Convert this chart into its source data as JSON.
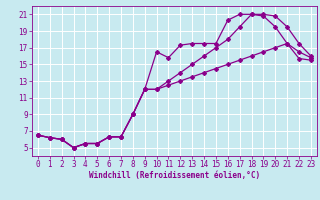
{
  "xlabel": "Windchill (Refroidissement éolien,°C)",
  "ylabel": "",
  "bg_color": "#c8eaf0",
  "line_color": "#8b008b",
  "marker": "D",
  "marker_size": 2,
  "linewidth": 0.9,
  "xlim": [
    -0.5,
    23.5
  ],
  "ylim": [
    4,
    22
  ],
  "xticks": [
    0,
    1,
    2,
    3,
    4,
    5,
    6,
    7,
    8,
    9,
    10,
    11,
    12,
    13,
    14,
    15,
    16,
    17,
    18,
    19,
    20,
    21,
    22,
    23
  ],
  "yticks": [
    5,
    7,
    9,
    11,
    13,
    15,
    17,
    19,
    21
  ],
  "grid_color": "#ffffff",
  "line1_y": [
    6.5,
    6.2,
    6.0,
    5.0,
    5.5,
    5.5,
    6.3,
    6.3,
    9.0,
    12.0,
    16.5,
    15.8,
    17.3,
    17.5,
    17.5,
    17.5,
    20.3,
    21.0,
    21.0,
    20.8,
    19.5,
    17.5,
    16.5,
    15.8
  ],
  "line2_y": [
    6.5,
    6.2,
    6.0,
    5.0,
    5.5,
    5.5,
    6.3,
    6.3,
    9.0,
    12.0,
    12.0,
    13.0,
    14.0,
    15.0,
    16.0,
    17.0,
    18.0,
    19.5,
    21.0,
    21.0,
    20.8,
    19.5,
    17.5,
    16.0
  ],
  "line3_y": [
    6.5,
    6.2,
    6.0,
    5.0,
    5.5,
    5.5,
    6.3,
    6.3,
    9.0,
    12.0,
    12.0,
    12.5,
    13.0,
    13.5,
    14.0,
    14.5,
    15.0,
    15.5,
    16.0,
    16.5,
    17.0,
    17.5,
    15.7,
    15.5
  ],
  "tick_fontsize": 5.5,
  "xlabel_fontsize": 5.5
}
